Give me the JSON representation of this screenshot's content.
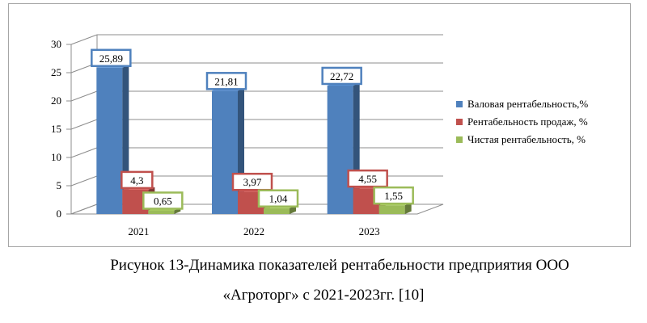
{
  "chart_data": {
    "type": "bar",
    "categories": [
      "2021",
      "2022",
      "2023"
    ],
    "series": [
      {
        "name": "Валовая рентабельность,%",
        "values": [
          25.89,
          21.81,
          22.72
        ],
        "labels": [
          "25,89",
          "21,81",
          "22,72"
        ],
        "color": "#4F81BD",
        "label_border": "#4F81BD"
      },
      {
        "name": "Рентабельность продаж, %",
        "values": [
          4.3,
          3.97,
          4.55
        ],
        "labels": [
          "4,3",
          "3,97",
          "4,55"
        ],
        "color": "#C0504D",
        "label_border": "#C0504D"
      },
      {
        "name": "Чистая рентабельность, %",
        "values": [
          0.65,
          1.04,
          1.55
        ],
        "labels": [
          "0,65",
          "1,04",
          "1,55"
        ],
        "color": "#9BBB59",
        "label_border": "#9BBB59"
      }
    ],
    "ylim": [
      0,
      30
    ],
    "yticks": [
      "0",
      "5",
      "10",
      "15",
      "20",
      "25",
      "30"
    ],
    "grid": true,
    "legend": "right",
    "style": "3d"
  },
  "caption": {
    "line1": "Рисунок 13-Динамика показателей рентабельности  предприятия ООО",
    "line2": "«Агроторг» с 2021-2023гг. [10]"
  }
}
